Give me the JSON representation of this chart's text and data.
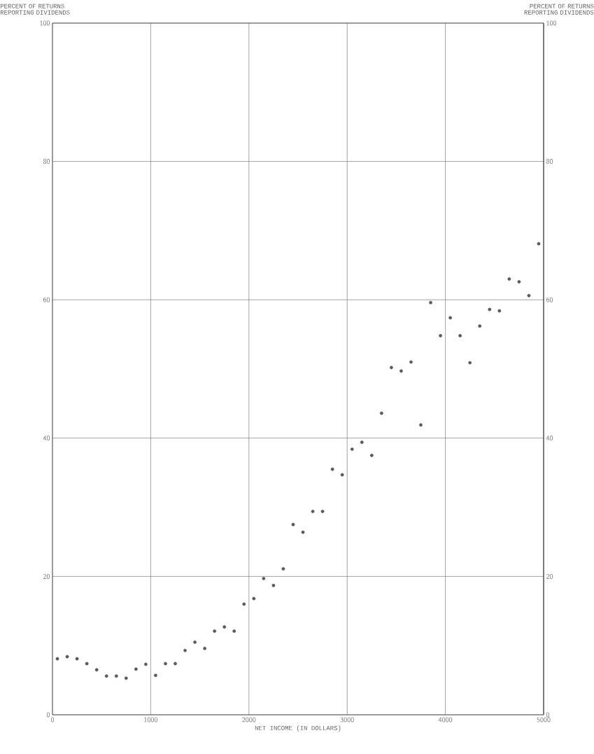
{
  "chart_data": {
    "type": "scatter",
    "xlabel": "NET INCOME (IN DOLLARS)",
    "ylabel": "PERCENT OF RETURNS REPORTING DIVIDENDS",
    "y2label": "PERCENT OF RETURNS REPORTING DIVIDENDS",
    "x": [
      50,
      150,
      250,
      350,
      450,
      550,
      650,
      750,
      850,
      950,
      1050,
      1150,
      1250,
      1350,
      1450,
      1550,
      1650,
      1750,
      1850,
      1950,
      2050,
      2150,
      2250,
      2350,
      2450,
      2550,
      2650,
      2750,
      2850,
      2950,
      3050,
      3150,
      3250,
      3350,
      3450,
      3550,
      3650,
      3750,
      3850,
      3950,
      4050,
      4150,
      4250,
      4350,
      4450,
      4550,
      4650,
      4750,
      4850,
      4950
    ],
    "values": [
      8.1,
      8.4,
      8.1,
      7.4,
      6.5,
      5.6,
      5.6,
      5.3,
      6.6,
      7.3,
      5.7,
      7.4,
      7.4,
      9.3,
      10.5,
      9.6,
      12.1,
      12.7,
      12.1,
      16.0,
      16.8,
      19.7,
      18.7,
      21.1,
      27.5,
      26.4,
      29.4,
      29.4,
      35.5,
      34.7,
      38.4,
      39.4,
      37.5,
      43.6,
      50.2,
      49.7,
      51.0,
      41.9,
      59.6,
      54.8,
      57.4,
      54.8,
      50.9,
      56.2,
      58.6,
      58.4,
      63.0,
      62.6,
      60.6,
      68.1
    ],
    "color": "#5a5a55",
    "grid": true,
    "xlim": [
      0,
      5000
    ],
    "xticks": [
      0,
      1000,
      2000,
      3000,
      4000,
      5000
    ],
    "ylim": [
      0,
      100
    ],
    "yticks": [
      0,
      20,
      40,
      60,
      80,
      100
    ],
    "y2lim": [
      0,
      100
    ],
    "y2ticks": [
      0,
      20,
      40,
      60,
      80,
      100
    ]
  }
}
